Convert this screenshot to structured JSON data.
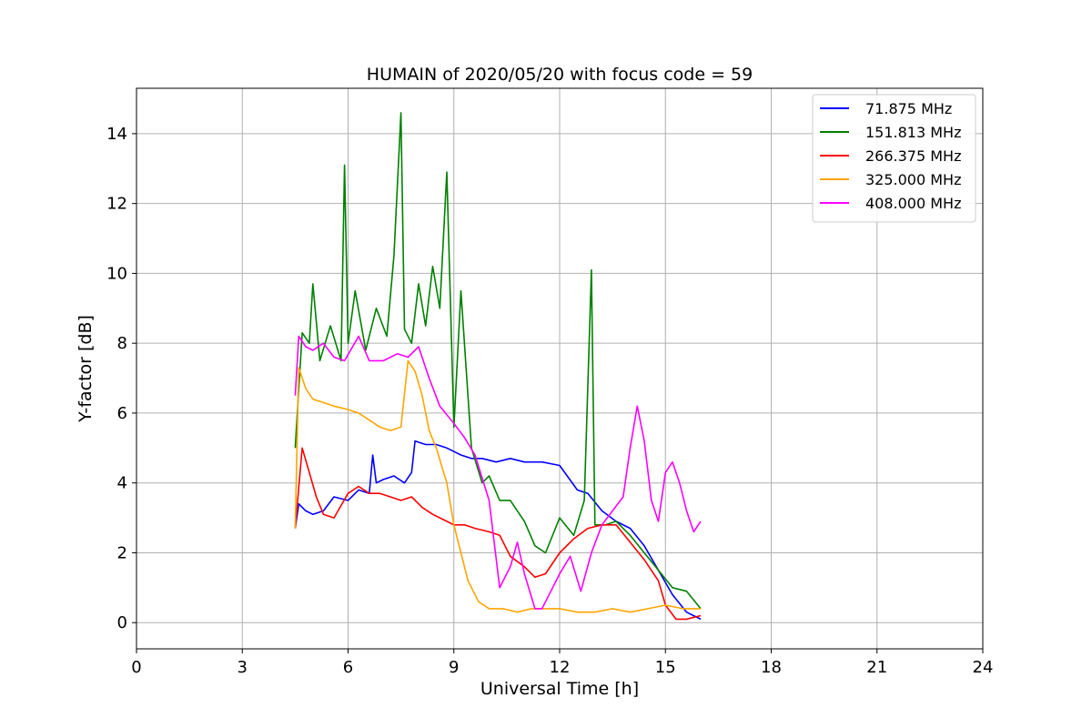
{
  "chart_data": {
    "type": "line",
    "title": "HUMAIN of 2020/05/20 with focus code = 59",
    "xlabel": "Universal Time [h]",
    "ylabel": "Y-factor [dB]",
    "xlim": [
      0,
      24
    ],
    "ylim": [
      -0.75,
      15.3
    ],
    "xticks": [
      0,
      3,
      6,
      9,
      12,
      15,
      18,
      21,
      24
    ],
    "yticks": [
      0,
      2,
      4,
      6,
      8,
      10,
      12,
      14
    ],
    "grid": true,
    "legend_position": "top-right",
    "series": [
      {
        "name": "  71.875 MHz",
        "color": "#0000ff",
        "x": [
          4.5,
          4.6,
          4.8,
          5.0,
          5.3,
          5.6,
          6.0,
          6.3,
          6.6,
          6.7,
          6.8,
          7.0,
          7.3,
          7.6,
          7.8,
          7.9,
          8.2,
          8.5,
          8.8,
          9.0,
          9.2,
          9.5,
          9.8,
          10.2,
          10.6,
          11.0,
          11.5,
          12.0,
          12.5,
          12.8,
          13.2,
          13.6,
          14.0,
          14.4,
          14.8,
          15.2,
          15.6,
          16.0
        ],
        "y": [
          2.7,
          3.4,
          3.2,
          3.1,
          3.2,
          3.6,
          3.5,
          3.8,
          3.7,
          4.8,
          4.0,
          4.1,
          4.2,
          4.0,
          4.3,
          5.2,
          5.1,
          5.1,
          5.0,
          4.9,
          4.8,
          4.7,
          4.7,
          4.6,
          4.7,
          4.6,
          4.6,
          4.5,
          3.8,
          3.7,
          3.2,
          2.9,
          2.7,
          2.2,
          1.5,
          0.8,
          0.3,
          0.1
        ]
      },
      {
        "name": "151.813 MHz",
        "color": "#008000",
        "x": [
          4.5,
          4.7,
          4.9,
          5.0,
          5.2,
          5.5,
          5.8,
          5.9,
          6.0,
          6.2,
          6.5,
          6.8,
          7.1,
          7.3,
          7.5,
          7.6,
          7.8,
          8.0,
          8.2,
          8.4,
          8.6,
          8.8,
          9.0,
          9.2,
          9.5,
          9.8,
          10.0,
          10.3,
          10.6,
          10.8,
          11.0,
          11.3,
          11.6,
          12.0,
          12.4,
          12.7,
          12.9,
          13.0,
          13.3,
          13.6,
          14.0,
          14.4,
          14.8,
          15.2,
          15.6,
          16.0
        ],
        "y": [
          5.0,
          8.3,
          8.0,
          9.7,
          7.5,
          8.5,
          7.5,
          13.1,
          8.0,
          9.5,
          7.8,
          9.0,
          8.2,
          10.5,
          14.6,
          8.4,
          8.0,
          9.7,
          8.5,
          10.2,
          9.0,
          12.9,
          5.6,
          9.5,
          5.0,
          4.0,
          4.2,
          3.5,
          3.5,
          3.2,
          2.9,
          2.2,
          2.0,
          3.0,
          2.5,
          3.5,
          10.1,
          2.8,
          2.8,
          2.9,
          2.5,
          2.0,
          1.5,
          1.0,
          0.9,
          0.4
        ]
      },
      {
        "name": "266.375 MHz",
        "color": "#ff0000",
        "x": [
          4.5,
          4.7,
          4.9,
          5.1,
          5.3,
          5.6,
          6.0,
          6.3,
          6.6,
          6.9,
          7.2,
          7.5,
          7.8,
          8.1,
          8.4,
          8.8,
          9.0,
          9.3,
          9.6,
          10.0,
          10.3,
          10.6,
          11.0,
          11.3,
          11.6,
          12.0,
          12.4,
          12.8,
          13.2,
          13.6,
          14.0,
          14.4,
          14.8,
          15.0,
          15.3,
          15.6,
          16.0
        ],
        "y": [
          2.7,
          5.0,
          4.3,
          3.6,
          3.1,
          3.0,
          3.7,
          3.9,
          3.7,
          3.7,
          3.6,
          3.5,
          3.6,
          3.3,
          3.1,
          2.9,
          2.8,
          2.8,
          2.7,
          2.6,
          2.5,
          1.9,
          1.6,
          1.3,
          1.4,
          2.0,
          2.4,
          2.7,
          2.8,
          2.8,
          2.3,
          1.8,
          1.2,
          0.5,
          0.1,
          0.1,
          0.2
        ]
      },
      {
        "name": "325.000 MHz",
        "color": "#ffa500",
        "x": [
          4.5,
          4.6,
          4.8,
          5.0,
          5.3,
          5.6,
          6.0,
          6.3,
          6.6,
          6.9,
          7.2,
          7.5,
          7.7,
          7.9,
          8.1,
          8.3,
          8.5,
          8.8,
          9.0,
          9.2,
          9.4,
          9.7,
          10.0,
          10.4,
          10.8,
          11.2,
          11.6,
          12.0,
          12.5,
          13.0,
          13.5,
          14.0,
          14.5,
          15.0,
          15.5,
          16.0
        ],
        "y": [
          2.7,
          7.3,
          6.7,
          6.4,
          6.3,
          6.2,
          6.1,
          6.0,
          5.8,
          5.6,
          5.5,
          5.6,
          7.5,
          7.2,
          6.5,
          5.5,
          5.0,
          4.0,
          2.8,
          2.0,
          1.2,
          0.6,
          0.4,
          0.4,
          0.3,
          0.4,
          0.4,
          0.4,
          0.3,
          0.3,
          0.4,
          0.3,
          0.4,
          0.5,
          0.4,
          0.4
        ]
      },
      {
        "name": "408.000 MHz",
        "color": "#ff00ff",
        "x": [
          4.5,
          4.6,
          4.8,
          5.0,
          5.3,
          5.6,
          5.9,
          6.3,
          6.6,
          7.0,
          7.4,
          7.7,
          8.0,
          8.3,
          8.6,
          9.0,
          9.3,
          9.6,
          10.0,
          10.3,
          10.6,
          10.8,
          11.0,
          11.3,
          11.5,
          11.8,
          12.0,
          12.3,
          12.6,
          12.9,
          13.2,
          13.5,
          13.8,
          14.0,
          14.2,
          14.4,
          14.6,
          14.8,
          15.0,
          15.2,
          15.4,
          15.6,
          15.8,
          16.0
        ],
        "y": [
          6.5,
          8.2,
          7.9,
          7.8,
          8.0,
          7.6,
          7.5,
          8.2,
          7.5,
          7.5,
          7.7,
          7.6,
          7.9,
          7.0,
          6.2,
          5.7,
          5.3,
          4.8,
          3.5,
          1.0,
          1.6,
          2.3,
          1.4,
          0.4,
          0.4,
          1.0,
          1.4,
          1.9,
          0.9,
          2.0,
          2.8,
          3.2,
          3.6,
          5.0,
          6.2,
          5.2,
          3.5,
          2.9,
          4.3,
          4.6,
          4.0,
          3.2,
          2.6,
          2.9
        ]
      }
    ]
  }
}
